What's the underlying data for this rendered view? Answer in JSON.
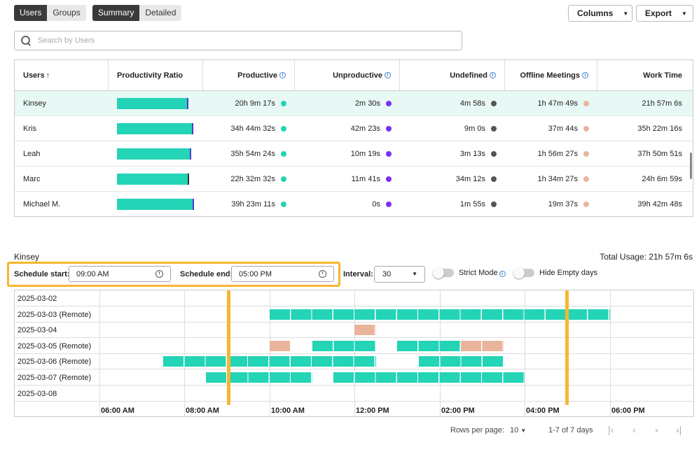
{
  "toggles": {
    "group1": [
      "Users",
      "Groups"
    ],
    "group2": [
      "Summary",
      "Detailed"
    ]
  },
  "toolbar": {
    "columns_label": "Columns",
    "export_label": "Export"
  },
  "search": {
    "placeholder": "Search by Users"
  },
  "table": {
    "headers": [
      "Users",
      "Productivity Ratio",
      "Productive",
      "Unproductive",
      "Undefined",
      "Offline Meetings",
      "Work Time"
    ],
    "rows": [
      {
        "user": "Kinsey",
        "productive": "20h 9m 17s",
        "unproductive": "2m 30s",
        "undefined": "4m 58s",
        "offline": "1h 47m 49s",
        "work": "21h 57m 6s",
        "ratio": 0.92
      },
      {
        "user": "Kris",
        "productive": "34h 44m 32s",
        "unproductive": "42m 23s",
        "undefined": "9m 0s",
        "offline": "37m 44s",
        "work": "35h 22m 16s",
        "ratio": 0.98
      },
      {
        "user": "Leah",
        "productive": "35h 54m 24s",
        "unproductive": "10m 19s",
        "undefined": "3m 13s",
        "offline": "1h 56m 27s",
        "work": "37h 50m 51s",
        "ratio": 0.95
      },
      {
        "user": "Marc",
        "productive": "22h 32m 32s",
        "unproductive": "11m 41s",
        "undefined": "34m 12s",
        "offline": "1h 34m 27s",
        "work": "24h 6m 59s",
        "ratio": 0.93
      },
      {
        "user": "Michael M.",
        "productive": "39h 23m 11s",
        "unproductive": "0s",
        "undefined": "1m 55s",
        "offline": "19m 37s",
        "work": "39h 42m 48s",
        "ratio": 0.99
      }
    ]
  },
  "colors": {
    "productive": "#23d4b6",
    "unproductive": "#7b2ff7",
    "undefined": "#555555",
    "offline": "#e9b49c",
    "highlight": "#f5b731"
  },
  "schedule": {
    "user": "Kinsey",
    "total_usage": "Total Usage: 21h 57m 6s",
    "start_label": "Schedule start:",
    "start_value": "09:00 AM",
    "end_label": "Schedule end:",
    "end_value": "05:00 PM",
    "interval_label": "Interval:",
    "interval_value": "30",
    "strict_mode": "Strict Mode",
    "hide_empty": "Hide Empty days",
    "days": [
      "2025-03-02",
      "2025-03-03 (Remote)",
      "2025-03-04",
      "2025-03-05 (Remote)",
      "2025-03-06 (Remote)",
      "2025-03-07 (Remote)",
      "2025-03-08"
    ],
    "x_labels": [
      "06:00 AM",
      "08:00 AM",
      "10:00 AM",
      "12:00 PM",
      "02:00 PM",
      "04:00 PM",
      "06:00 PM"
    ]
  },
  "pager": {
    "rows_label": "Rows per page:",
    "rows_value": "10",
    "range": "1-7 of 7 days"
  }
}
